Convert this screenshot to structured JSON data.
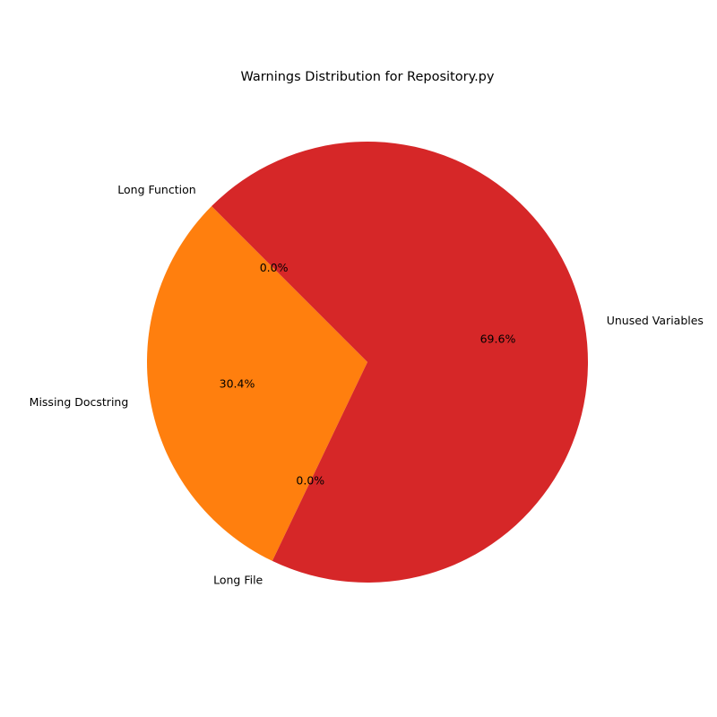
{
  "chart_data": {
    "type": "pie",
    "title": "Warnings Distribution for Repository.py",
    "start_angle_deg": 135,
    "direction": "counterclockwise",
    "slices": [
      {
        "label": "Long Function",
        "percent": 0.0,
        "pct_label": "0.0%",
        "color": "#1f77b4"
      },
      {
        "label": "Missing Docstring",
        "percent": 30.4,
        "pct_label": "30.4%",
        "color": "#ff7f0e"
      },
      {
        "label": "Long File",
        "percent": 0.0,
        "pct_label": "0.0%",
        "color": "#2ca02c"
      },
      {
        "label": "Unused Variables",
        "percent": 69.6,
        "pct_label": "69.6%",
        "color": "#d62728"
      }
    ]
  }
}
